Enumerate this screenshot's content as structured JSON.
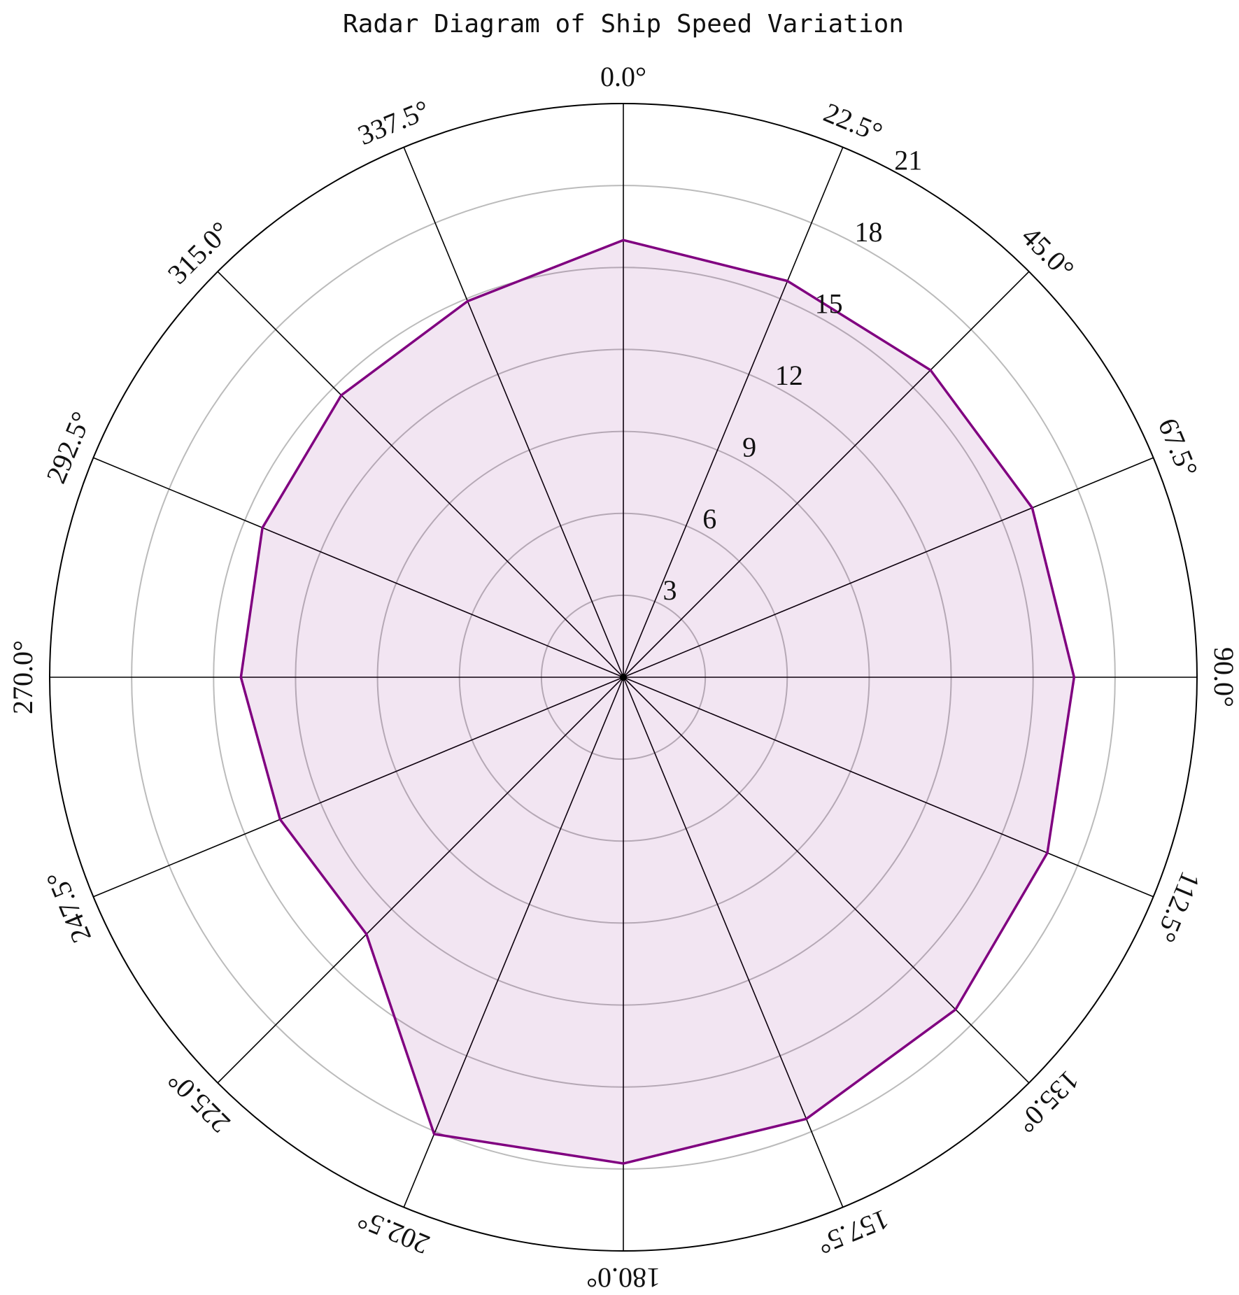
{
  "chart_data": {
    "type": "radar",
    "title": "Radar Diagram of Ship Speed Variation",
    "categories": [
      "0.0°",
      "22.5°",
      "45.0°",
      "67.5°",
      "90.0°",
      "112.5°",
      "135.0°",
      "157.5°",
      "180.0°",
      "202.5°",
      "225.0°",
      "247.5°",
      "270.0°",
      "292.5°",
      "315.0°",
      "337.5°"
    ],
    "values": [
      16.0,
      15.7,
      15.9,
      16.2,
      16.5,
      16.8,
      17.2,
      17.5,
      17.8,
      18.1,
      13.3,
      13.6,
      14.0,
      14.3,
      14.6,
      14.9
    ],
    "color": "#800080",
    "ylim": [
      0,
      21
    ],
    "yticks": [
      3,
      6,
      9,
      12,
      15,
      18,
      21
    ],
    "grid": true
  }
}
